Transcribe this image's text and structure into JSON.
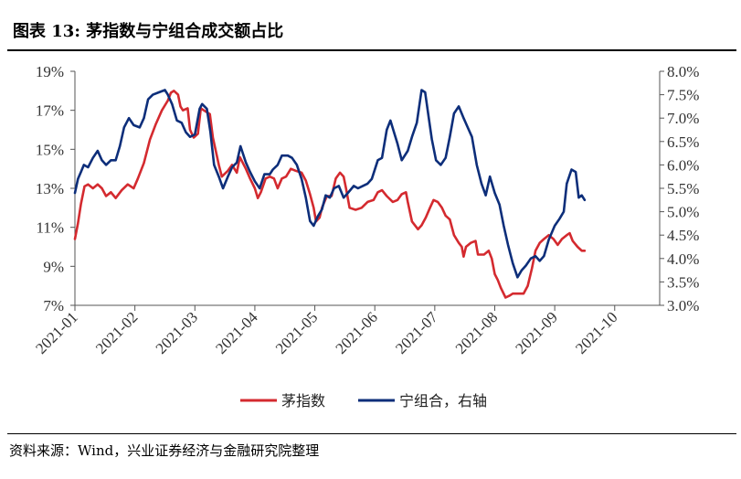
{
  "title": "图表 13:  茅指数与宁组合成交额占比",
  "source": "资料来源：Wind，兴业证券经济与金融研究院整理",
  "chart_data": {
    "type": "line",
    "x_ticks": [
      "2021-01",
      "2021-02",
      "2021-03",
      "2021-04",
      "2021-05",
      "2021-06",
      "2021-07",
      "2021-08",
      "2021-09",
      "2021-10"
    ],
    "y_left": {
      "min": 7,
      "max": 19,
      "ticks": [
        "7%",
        "9%",
        "11%",
        "13%",
        "15%",
        "17%",
        "19%"
      ],
      "values": [
        7,
        9,
        11,
        13,
        15,
        17,
        19
      ]
    },
    "y_right": {
      "min": 3.0,
      "max": 8.0,
      "ticks": [
        "3.0%",
        "3.5%",
        "4.0%",
        "4.5%",
        "5.0%",
        "5.5%",
        "6.0%",
        "6.5%",
        "7.0%",
        "7.5%",
        "8.0%"
      ],
      "values": [
        3.0,
        3.5,
        4.0,
        4.5,
        5.0,
        5.5,
        6.0,
        6.5,
        7.0,
        7.5,
        8.0
      ]
    },
    "series": [
      {
        "name": "茅指数",
        "axis": "left",
        "color": "#d42a2f",
        "points": [
          [
            0.0,
            10.4
          ],
          [
            0.05,
            11.2
          ],
          [
            0.1,
            12.2
          ],
          [
            0.16,
            13.1
          ],
          [
            0.22,
            13.2
          ],
          [
            0.3,
            13.0
          ],
          [
            0.38,
            13.2
          ],
          [
            0.45,
            13.0
          ],
          [
            0.52,
            12.6
          ],
          [
            0.6,
            12.8
          ],
          [
            0.68,
            12.5
          ],
          [
            0.78,
            12.9
          ],
          [
            0.88,
            13.2
          ],
          [
            0.98,
            13.0
          ],
          [
            1.05,
            13.5
          ],
          [
            1.15,
            14.3
          ],
          [
            1.25,
            15.5
          ],
          [
            1.35,
            16.3
          ],
          [
            1.45,
            17.0
          ],
          [
            1.55,
            17.5
          ],
          [
            1.6,
            17.9
          ],
          [
            1.65,
            18.0
          ],
          [
            1.72,
            17.8
          ],
          [
            1.76,
            17.2
          ],
          [
            1.8,
            17.0
          ],
          [
            1.88,
            17.1
          ],
          [
            1.92,
            16.0
          ],
          [
            1.98,
            15.6
          ],
          [
            2.05,
            15.8
          ],
          [
            2.1,
            17.1
          ],
          [
            2.15,
            17.0
          ],
          [
            2.25,
            16.8
          ],
          [
            2.3,
            15.6
          ],
          [
            2.4,
            14.2
          ],
          [
            2.45,
            13.6
          ],
          [
            2.55,
            13.9
          ],
          [
            2.62,
            14.2
          ],
          [
            2.7,
            13.8
          ],
          [
            2.75,
            14.6
          ],
          [
            2.85,
            14.0
          ],
          [
            2.92,
            13.5
          ],
          [
            3.0,
            13.0
          ],
          [
            3.05,
            12.5
          ],
          [
            3.1,
            12.8
          ],
          [
            3.18,
            13.5
          ],
          [
            3.25,
            13.6
          ],
          [
            3.32,
            13.5
          ],
          [
            3.38,
            13.0
          ],
          [
            3.45,
            13.5
          ],
          [
            3.52,
            13.6
          ],
          [
            3.6,
            14.0
          ],
          [
            3.68,
            13.9
          ],
          [
            3.78,
            13.8
          ],
          [
            3.85,
            13.4
          ],
          [
            3.92,
            12.7
          ],
          [
            3.98,
            12.0
          ],
          [
            4.02,
            11.3
          ],
          [
            4.08,
            11.5
          ],
          [
            4.12,
            12.0
          ],
          [
            4.2,
            12.6
          ],
          [
            4.28,
            12.6
          ],
          [
            4.35,
            13.5
          ],
          [
            4.42,
            13.8
          ],
          [
            4.48,
            13.6
          ],
          [
            4.52,
            13.0
          ],
          [
            4.58,
            12.0
          ],
          [
            4.68,
            11.9
          ],
          [
            4.78,
            12.0
          ],
          [
            4.88,
            12.3
          ],
          [
            4.98,
            12.4
          ],
          [
            5.05,
            12.8
          ],
          [
            5.12,
            12.9
          ],
          [
            5.2,
            12.6
          ],
          [
            5.3,
            12.3
          ],
          [
            5.38,
            12.4
          ],
          [
            5.45,
            12.7
          ],
          [
            5.52,
            12.8
          ],
          [
            5.55,
            12.3
          ],
          [
            5.62,
            11.3
          ],
          [
            5.72,
            10.9
          ],
          [
            5.78,
            11.1
          ],
          [
            5.85,
            11.5
          ],
          [
            5.92,
            12.0
          ],
          [
            5.98,
            12.4
          ],
          [
            6.05,
            12.3
          ],
          [
            6.12,
            12.0
          ],
          [
            6.18,
            11.6
          ],
          [
            6.25,
            11.4
          ],
          [
            6.32,
            10.6
          ],
          [
            6.4,
            10.2
          ],
          [
            6.45,
            10.0
          ],
          [
            6.48,
            9.5
          ],
          [
            6.52,
            10.0
          ],
          [
            6.6,
            10.2
          ],
          [
            6.68,
            10.3
          ],
          [
            6.72,
            9.6
          ],
          [
            6.82,
            9.6
          ],
          [
            6.9,
            9.8
          ],
          [
            6.95,
            9.4
          ],
          [
            7.0,
            8.6
          ],
          [
            7.05,
            8.3
          ],
          [
            7.1,
            7.9
          ],
          [
            7.18,
            7.4
          ],
          [
            7.25,
            7.5
          ],
          [
            7.3,
            7.6
          ],
          [
            7.4,
            7.6
          ],
          [
            7.48,
            7.6
          ],
          [
            7.55,
            8.0
          ],
          [
            7.62,
            8.9
          ],
          [
            7.68,
            9.8
          ],
          [
            7.75,
            10.2
          ],
          [
            7.82,
            10.4
          ],
          [
            7.9,
            10.6
          ],
          [
            7.98,
            10.4
          ],
          [
            8.05,
            10.1
          ],
          [
            8.12,
            10.4
          ],
          [
            8.2,
            10.6
          ],
          [
            8.25,
            10.7
          ],
          [
            8.3,
            10.3
          ],
          [
            8.38,
            10.0
          ],
          [
            8.45,
            9.8
          ],
          [
            8.5,
            9.8
          ]
        ]
      },
      {
        "name": "宁组合，右轴",
        "axis": "right",
        "color": "#0d2e7a",
        "points": [
          [
            0.0,
            5.4
          ],
          [
            0.05,
            5.7
          ],
          [
            0.1,
            5.85
          ],
          [
            0.15,
            6.0
          ],
          [
            0.22,
            5.95
          ],
          [
            0.3,
            6.15
          ],
          [
            0.38,
            6.3
          ],
          [
            0.45,
            6.1
          ],
          [
            0.52,
            6.0
          ],
          [
            0.6,
            6.1
          ],
          [
            0.68,
            6.1
          ],
          [
            0.75,
            6.4
          ],
          [
            0.82,
            6.8
          ],
          [
            0.9,
            7.0
          ],
          [
            0.98,
            6.85
          ],
          [
            1.08,
            6.8
          ],
          [
            1.15,
            7.0
          ],
          [
            1.22,
            7.4
          ],
          [
            1.3,
            7.5
          ],
          [
            1.4,
            7.55
          ],
          [
            1.5,
            7.6
          ],
          [
            1.55,
            7.5
          ],
          [
            1.62,
            7.3
          ],
          [
            1.7,
            6.95
          ],
          [
            1.78,
            6.9
          ],
          [
            1.85,
            6.7
          ],
          [
            1.92,
            6.6
          ],
          [
            2.0,
            6.65
          ],
          [
            2.08,
            7.2
          ],
          [
            2.12,
            7.3
          ],
          [
            2.2,
            7.2
          ],
          [
            2.26,
            6.7
          ],
          [
            2.32,
            6.0
          ],
          [
            2.4,
            5.75
          ],
          [
            2.47,
            5.5
          ],
          [
            2.55,
            5.75
          ],
          [
            2.62,
            5.95
          ],
          [
            2.7,
            6.05
          ],
          [
            2.76,
            6.4
          ],
          [
            2.85,
            6.05
          ],
          [
            2.92,
            5.85
          ],
          [
            3.0,
            5.65
          ],
          [
            3.08,
            5.5
          ],
          [
            3.16,
            5.8
          ],
          [
            3.25,
            5.8
          ],
          [
            3.3,
            5.9
          ],
          [
            3.38,
            6.0
          ],
          [
            3.45,
            6.2
          ],
          [
            3.55,
            6.2
          ],
          [
            3.62,
            6.15
          ],
          [
            3.7,
            6.0
          ],
          [
            3.78,
            5.7
          ],
          [
            3.85,
            5.3
          ],
          [
            3.92,
            4.8
          ],
          [
            3.98,
            4.7
          ],
          [
            4.05,
            4.9
          ],
          [
            4.12,
            5.05
          ],
          [
            4.18,
            5.35
          ],
          [
            4.25,
            5.3
          ],
          [
            4.32,
            5.5
          ],
          [
            4.4,
            5.55
          ],
          [
            4.48,
            5.3
          ],
          [
            4.55,
            5.4
          ],
          [
            4.65,
            5.55
          ],
          [
            4.72,
            5.5
          ],
          [
            4.8,
            5.55
          ],
          [
            4.88,
            5.6
          ],
          [
            4.95,
            5.7
          ],
          [
            5.05,
            6.1
          ],
          [
            5.12,
            6.15
          ],
          [
            5.2,
            6.75
          ],
          [
            5.26,
            6.95
          ],
          [
            5.32,
            6.7
          ],
          [
            5.38,
            6.45
          ],
          [
            5.45,
            6.1
          ],
          [
            5.55,
            6.3
          ],
          [
            5.62,
            6.6
          ],
          [
            5.7,
            6.9
          ],
          [
            5.78,
            7.6
          ],
          [
            5.84,
            7.55
          ],
          [
            5.9,
            7.0
          ],
          [
            5.95,
            6.55
          ],
          [
            6.02,
            6.1
          ],
          [
            6.1,
            6.0
          ],
          [
            6.18,
            6.15
          ],
          [
            6.25,
            6.6
          ],
          [
            6.32,
            7.1
          ],
          [
            6.4,
            7.25
          ],
          [
            6.48,
            7.0
          ],
          [
            6.55,
            6.8
          ],
          [
            6.62,
            6.6
          ],
          [
            6.7,
            6.0
          ],
          [
            6.78,
            5.6
          ],
          [
            6.85,
            5.35
          ],
          [
            6.92,
            5.75
          ],
          [
            7.0,
            5.4
          ],
          [
            7.08,
            5.15
          ],
          [
            7.15,
            4.7
          ],
          [
            7.22,
            4.3
          ],
          [
            7.3,
            3.9
          ],
          [
            7.38,
            3.6
          ],
          [
            7.45,
            3.75
          ],
          [
            7.52,
            3.85
          ],
          [
            7.6,
            4.0
          ],
          [
            7.68,
            4.05
          ],
          [
            7.75,
            3.95
          ],
          [
            7.82,
            4.05
          ],
          [
            7.9,
            4.4
          ],
          [
            8.0,
            4.7
          ],
          [
            8.08,
            4.85
          ],
          [
            8.15,
            5.0
          ],
          [
            8.2,
            5.6
          ],
          [
            8.28,
            5.9
          ],
          [
            8.35,
            5.85
          ],
          [
            8.4,
            5.3
          ],
          [
            8.45,
            5.35
          ],
          [
            8.5,
            5.25
          ]
        ]
      }
    ],
    "legend_position": "bottom-center"
  }
}
